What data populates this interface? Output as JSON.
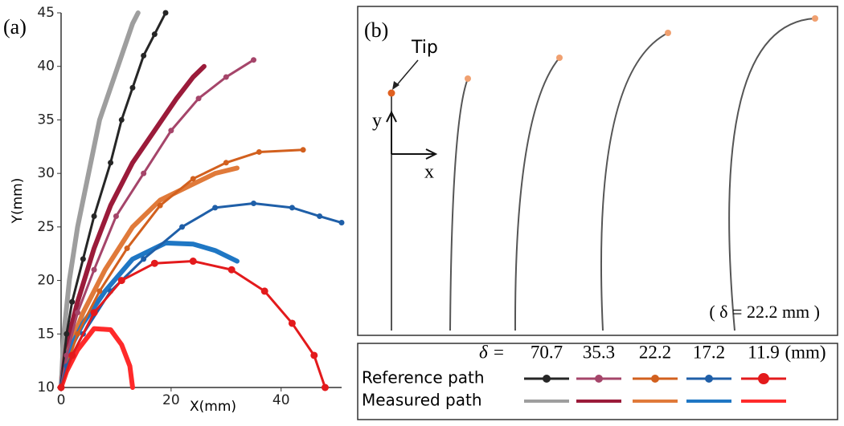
{
  "chart_data": {
    "type": "line",
    "panel_label": "(a)",
    "x_label": "X(mm)",
    "y_label": "Y(mm)",
    "xlim": [
      0,
      51
    ],
    "ylim": [
      10,
      45
    ],
    "xticks": [
      0,
      20,
      40
    ],
    "yticks": [
      10,
      15,
      20,
      25,
      30,
      35,
      40,
      45
    ],
    "delta_label": "δ =",
    "unit": "(mm)",
    "legend_rows": [
      "Reference path",
      "Measured path"
    ],
    "series": [
      {
        "delta": 70.7,
        "reference": {
          "color": "#262626",
          "x": [
            0,
            1,
            2,
            4,
            6,
            9,
            11,
            13,
            15,
            17,
            19
          ],
          "values": [
            10,
            15,
            18,
            22,
            26,
            31,
            35,
            38,
            41,
            43,
            45
          ]
        },
        "measured": {
          "color": "#9e9e9e",
          "x": [
            0,
            0.5,
            1.5,
            3,
            5,
            7,
            9,
            11,
            13,
            14
          ],
          "values": [
            10,
            15,
            20,
            25,
            30,
            35,
            38,
            41,
            44,
            45
          ]
        }
      },
      {
        "delta": 35.3,
        "reference": {
          "color": "#a5456a",
          "x": [
            0,
            1,
            3,
            6,
            10,
            15,
            20,
            25,
            30,
            35
          ],
          "values": [
            10,
            13,
            17,
            21,
            26,
            30,
            34,
            37,
            39,
            40.6
          ]
        },
        "measured": {
          "color": "#9b1b3a",
          "x": [
            0,
            1,
            3,
            6,
            9,
            13,
            17,
            21,
            24,
            26
          ],
          "values": [
            10,
            14,
            18,
            23,
            27,
            31,
            34,
            37,
            39,
            40
          ]
        }
      },
      {
        "delta": 22.2,
        "reference": {
          "color": "#d2601e",
          "x": [
            0,
            1,
            3,
            7,
            12,
            18,
            24,
            30,
            36,
            44
          ],
          "values": [
            10,
            12,
            15,
            19,
            23,
            27,
            29.5,
            31,
            32,
            32.2
          ]
        },
        "measured": {
          "color": "#e07a3a",
          "x": [
            0,
            1,
            4,
            8,
            13,
            18,
            24,
            28,
            32
          ],
          "values": [
            10,
            13,
            17,
            21,
            25,
            27.5,
            29,
            30,
            30.5
          ]
        }
      },
      {
        "delta": 17.2,
        "reference": {
          "color": "#1f5fa8",
          "x": [
            0,
            1,
            4,
            9,
            15,
            22,
            28,
            35,
            42,
            47,
            51
          ],
          "values": [
            10,
            12,
            15,
            19,
            22,
            25,
            26.8,
            27.2,
            26.8,
            26,
            25.4
          ]
        },
        "measured": {
          "color": "#1f77c4",
          "x": [
            0,
            1,
            4,
            8,
            13,
            19,
            24,
            28,
            32
          ],
          "values": [
            10,
            13,
            16,
            19,
            22,
            23.5,
            23.4,
            22.8,
            21.8
          ]
        }
      },
      {
        "delta": 11.9,
        "reference": {
          "color": "#e31a1c",
          "x": [
            0,
            2,
            6,
            11,
            17,
            24,
            31,
            37,
            42,
            46,
            48
          ],
          "values": [
            10,
            13,
            17,
            20,
            21.6,
            21.8,
            21,
            19,
            16,
            13,
            10
          ]
        },
        "measured": {
          "color": "#ff2a2a",
          "x": [
            0,
            1,
            3,
            6,
            9,
            11,
            12.5,
            13
          ],
          "values": [
            10,
            11.5,
            13.5,
            15.5,
            15.4,
            14,
            12,
            10
          ]
        }
      }
    ]
  },
  "panel_b": {
    "label": "(b)",
    "tip": "Tip",
    "axis_y": "y",
    "axis_x": "x",
    "caption": "( δ = 22.2 mm )"
  }
}
